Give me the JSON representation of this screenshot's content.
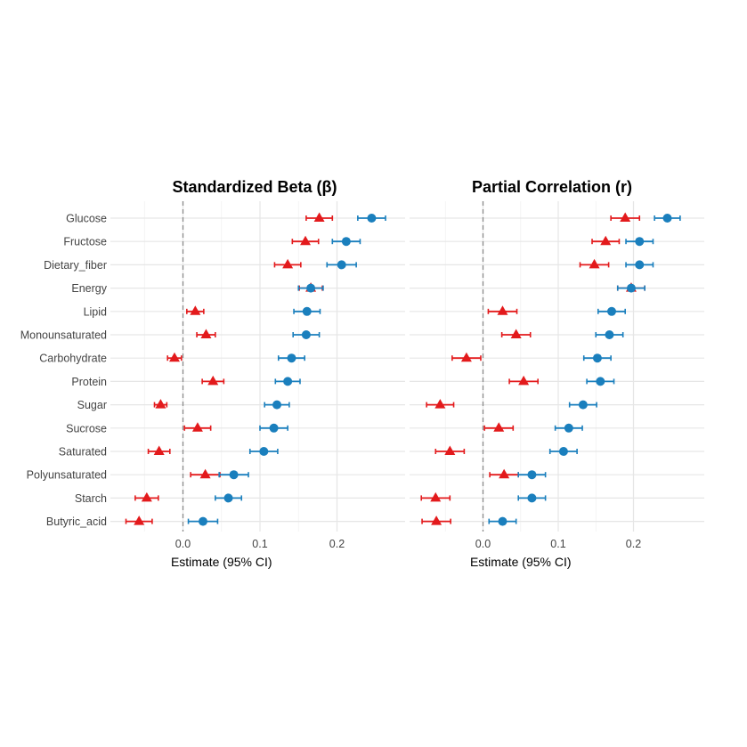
{
  "chart_data": [
    {
      "type": "forest",
      "title": "Standardized Beta (β)",
      "xlabel": "Estimate (95% CI)",
      "xlim": [
        -0.075,
        0.245
      ],
      "xticks": [
        "0.0",
        "0.1",
        "0.2"
      ],
      "categories": [
        "Glucose",
        "Fructose",
        "Dietary_fiber",
        "Energy",
        "Lipid",
        "Monounsaturated",
        "Carbohydrate",
        "Protein",
        "Sugar",
        "Sucrose",
        "Saturated",
        "Polyunsaturated",
        "Starch",
        "Butyric_acid"
      ],
      "series": [
        {
          "name": "red-triangle",
          "color": "#e31a1c",
          "shape": "triangle",
          "values": [
            0.177,
            0.159,
            0.136,
            0.166,
            0.016,
            0.03,
            -0.011,
            0.039,
            -0.029,
            0.019,
            -0.031,
            0.029,
            -0.047,
            -0.057
          ],
          "ci_half": [
            0.017,
            0.017,
            0.017,
            0.015,
            0.011,
            0.012,
            0.009,
            0.014,
            0.008,
            0.017,
            0.014,
            0.019,
            0.015,
            0.017
          ]
        },
        {
          "name": "blue-circle",
          "color": "#1a7fbd",
          "shape": "circle",
          "values": [
            0.245,
            0.212,
            0.206,
            0.166,
            0.161,
            0.16,
            0.141,
            0.136,
            0.122,
            0.118,
            0.105,
            0.066,
            0.059,
            0.026
          ],
          "ci_half": [
            0.018,
            0.018,
            0.019,
            0.016,
            0.017,
            0.017,
            0.017,
            0.016,
            0.016,
            0.018,
            0.018,
            0.019,
            0.017,
            0.019
          ]
        }
      ],
      "reference_line": 0
    },
    {
      "type": "forest",
      "title": "Partial Correlation (r)",
      "xlabel": "Estimate (95% CI)",
      "xlim": [
        -0.075,
        0.245
      ],
      "xticks": [
        "0.0",
        "0.1",
        "0.2"
      ],
      "categories": [
        "Glucose",
        "Fructose",
        "Dietary_fiber",
        "Energy",
        "Lipid",
        "Monounsaturated",
        "Carbohydrate",
        "Protein",
        "Sugar",
        "Sucrose",
        "Saturated",
        "Polyunsaturated",
        "Starch",
        "Butyric_acid"
      ],
      "series": [
        {
          "name": "red-triangle",
          "color": "#e31a1c",
          "shape": "triangle",
          "values": [
            0.189,
            0.163,
            0.148,
            0.197,
            0.026,
            0.044,
            -0.022,
            0.054,
            -0.057,
            0.021,
            -0.044,
            0.028,
            -0.063,
            -0.062
          ],
          "ci_half": [
            0.019,
            0.018,
            0.019,
            0.018,
            0.019,
            0.019,
            0.019,
            0.019,
            0.018,
            0.019,
            0.019,
            0.019,
            0.019,
            0.019
          ]
        },
        {
          "name": "blue-circle",
          "color": "#1a7fbd",
          "shape": "circle",
          "values": [
            0.245,
            0.208,
            0.208,
            0.197,
            0.171,
            0.168,
            0.152,
            0.156,
            0.133,
            0.114,
            0.107,
            0.065,
            0.065,
            0.026
          ],
          "ci_half": [
            0.017,
            0.018,
            0.018,
            0.018,
            0.018,
            0.018,
            0.018,
            0.018,
            0.018,
            0.018,
            0.018,
            0.018,
            0.018,
            0.018
          ]
        }
      ],
      "reference_line": 0
    }
  ]
}
